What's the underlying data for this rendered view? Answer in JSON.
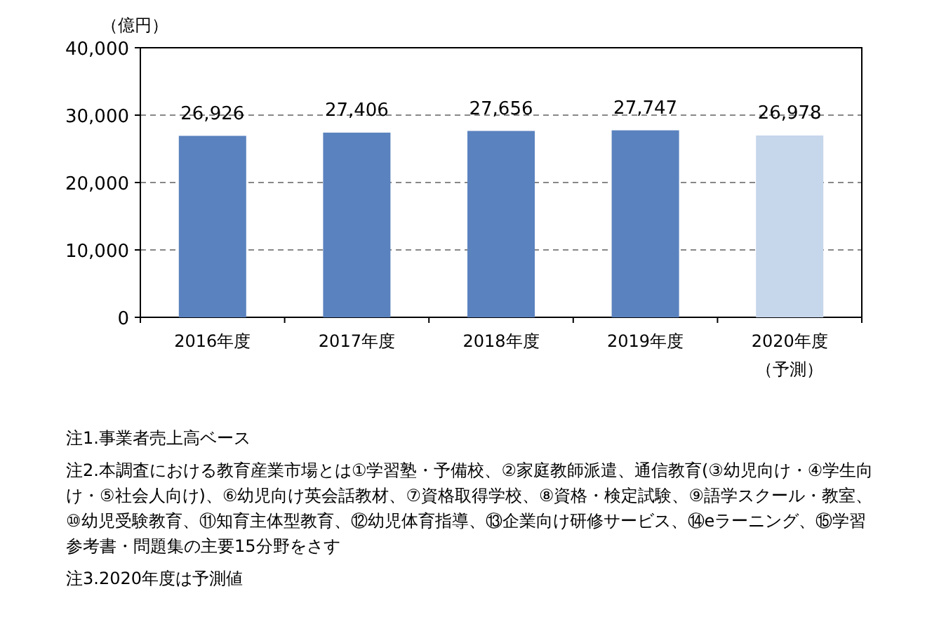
{
  "chart_data": {
    "type": "bar",
    "ylabel": "（億円）",
    "categories": [
      "2016年度",
      "2017年度",
      "2018年度",
      "2019年度",
      "2020年度（予測）"
    ],
    "values": [
      26926,
      27406,
      27656,
      27747,
      26978
    ],
    "colors": [
      "#5a82be",
      "#5a82be",
      "#5a82be",
      "#5a82be",
      "#c6d6eb"
    ],
    "ylim": [
      0,
      40000
    ],
    "yticks": [
      {
        "value": 0,
        "label": "0"
      },
      {
        "value": 10000,
        "label": "10,000"
      },
      {
        "value": 20000,
        "label": "20,000"
      },
      {
        "value": 30000,
        "label": "30,000"
      },
      {
        "value": 40000,
        "label": "40,000"
      }
    ],
    "grid": "y",
    "value_labels": [
      "26,926",
      "27,406",
      "27,656",
      "27,747",
      "26,978"
    ],
    "annotations": [
      "注1.事業者売上高ベース",
      "注2.本調査における教育産業市場とは①学習塾・予備校、②家庭教師派遣、通信教育(③幼児向け・④学生向け・⑤社会人向け)、⑥幼児向け英会話教材、⑦資格取得学校、⑧資格・検定試験、⑨語学スクール・教室、⑩幼児受験教育、⑪知育主体型教育、⑫幼児体育指導、⑬企業向け研修サービス、⑭eラーニング、⑮学習参考書・問題集の主要15分野をさす",
      "注3.2020年度は予測値"
    ]
  }
}
